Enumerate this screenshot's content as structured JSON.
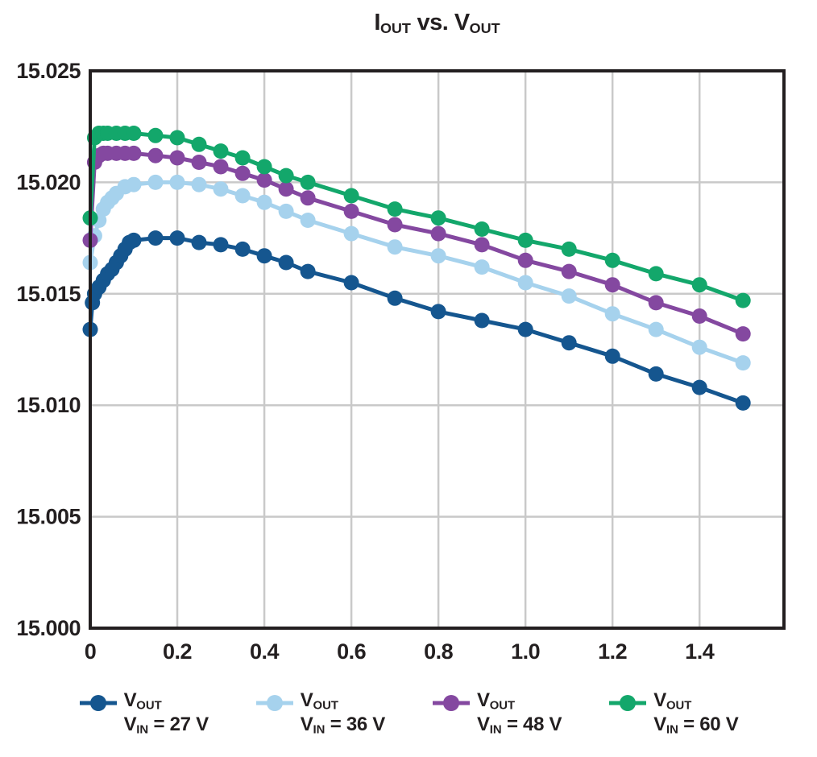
{
  "chart_data": {
    "type": "line",
    "title_segments": [
      {
        "text": "I",
        "sub": false
      },
      {
        "text": "OUT",
        "sub": true
      },
      {
        "text": " vs. V",
        "sub": false
      },
      {
        "text": "OUT",
        "sub": true
      }
    ],
    "xlabel": "",
    "ylabel": "",
    "xlim": [
      0,
      1.594
    ],
    "ylim": [
      15.0,
      15.025
    ],
    "grid": true,
    "legend_position": "bottom",
    "colors": {
      "background": "#ffffff",
      "grid": "#c9c9c9",
      "frame": "#231f20",
      "text": "#231f20"
    },
    "x_ticks": [
      {
        "v": 0.0,
        "label": "0"
      },
      {
        "v": 0.2,
        "label": "0.2"
      },
      {
        "v": 0.4,
        "label": "0.4"
      },
      {
        "v": 0.6,
        "label": "0.6"
      },
      {
        "v": 0.8,
        "label": "0.8"
      },
      {
        "v": 1.0,
        "label": "1.0"
      },
      {
        "v": 1.2,
        "label": "1.2"
      },
      {
        "v": 1.4,
        "label": "1.4"
      }
    ],
    "y_ticks": [
      {
        "v": 15.0,
        "label": "15.000"
      },
      {
        "v": 15.005,
        "label": "15.005"
      },
      {
        "v": 15.01,
        "label": "15.010"
      },
      {
        "v": 15.015,
        "label": "15.015"
      },
      {
        "v": 15.02,
        "label": "15.020"
      },
      {
        "v": 15.025,
        "label": "15.025"
      }
    ],
    "series": [
      {
        "name": "vout-vin-27v",
        "color": "#15568f",
        "legend_line1": [
          {
            "text": "V",
            "sub": false
          },
          {
            "text": "OUT",
            "sub": true
          }
        ],
        "legend_line2": [
          {
            "text": "V",
            "sub": false
          },
          {
            "text": "IN",
            "sub": true
          },
          {
            "text": " = 27 V",
            "sub": false
          }
        ],
        "points": [
          [
            0.0,
            15.0134
          ],
          [
            0.005,
            15.0146
          ],
          [
            0.01,
            15.015
          ],
          [
            0.02,
            15.0153
          ],
          [
            0.03,
            15.0156
          ],
          [
            0.04,
            15.0159
          ],
          [
            0.05,
            15.0161
          ],
          [
            0.06,
            15.0164
          ],
          [
            0.07,
            15.0167
          ],
          [
            0.08,
            15.017
          ],
          [
            0.09,
            15.0173
          ],
          [
            0.1,
            15.0174
          ],
          [
            0.15,
            15.0175
          ],
          [
            0.2,
            15.0175
          ],
          [
            0.25,
            15.0173
          ],
          [
            0.3,
            15.0172
          ],
          [
            0.35,
            15.017
          ],
          [
            0.4,
            15.0167
          ],
          [
            0.45,
            15.0164
          ],
          [
            0.5,
            15.016
          ],
          [
            0.6,
            15.0155
          ],
          [
            0.7,
            15.0148
          ],
          [
            0.8,
            15.0142
          ],
          [
            0.9,
            15.0138
          ],
          [
            1.0,
            15.0134
          ],
          [
            1.1,
            15.0128
          ],
          [
            1.2,
            15.0122
          ],
          [
            1.3,
            15.0114
          ],
          [
            1.4,
            15.0108
          ],
          [
            1.5,
            15.0101
          ]
        ]
      },
      {
        "name": "vout-vin-36v",
        "color": "#a6d2ed",
        "legend_line1": [
          {
            "text": "V",
            "sub": false
          },
          {
            "text": "OUT",
            "sub": true
          }
        ],
        "legend_line2": [
          {
            "text": "V",
            "sub": false
          },
          {
            "text": "IN",
            "sub": true
          },
          {
            "text": " = 36 V",
            "sub": false
          }
        ],
        "points": [
          [
            0.0,
            15.0164
          ],
          [
            0.01,
            15.0176
          ],
          [
            0.02,
            15.0183
          ],
          [
            0.03,
            15.0188
          ],
          [
            0.04,
            15.0191
          ],
          [
            0.05,
            15.0193
          ],
          [
            0.06,
            15.0195
          ],
          [
            0.08,
            15.0198
          ],
          [
            0.1,
            15.0199
          ],
          [
            0.15,
            15.02
          ],
          [
            0.2,
            15.02
          ],
          [
            0.25,
            15.0199
          ],
          [
            0.3,
            15.0197
          ],
          [
            0.35,
            15.0194
          ],
          [
            0.4,
            15.0191
          ],
          [
            0.45,
            15.0187
          ],
          [
            0.5,
            15.0183
          ],
          [
            0.6,
            15.0177
          ],
          [
            0.7,
            15.0171
          ],
          [
            0.8,
            15.0167
          ],
          [
            0.9,
            15.0162
          ],
          [
            1.0,
            15.0155
          ],
          [
            1.1,
            15.0149
          ],
          [
            1.2,
            15.0141
          ],
          [
            1.3,
            15.0134
          ],
          [
            1.4,
            15.0126
          ],
          [
            1.5,
            15.0119
          ]
        ]
      },
      {
        "name": "vout-vin-48v",
        "color": "#8448a0",
        "legend_line1": [
          {
            "text": "V",
            "sub": false
          },
          {
            "text": "OUT",
            "sub": true
          }
        ],
        "legend_line2": [
          {
            "text": "V",
            "sub": false
          },
          {
            "text": "IN",
            "sub": true
          },
          {
            "text": " = 48 V",
            "sub": false
          }
        ],
        "points": [
          [
            0.0,
            15.0174
          ],
          [
            0.01,
            15.0209
          ],
          [
            0.02,
            15.0212
          ],
          [
            0.03,
            15.0213
          ],
          [
            0.04,
            15.0213
          ],
          [
            0.06,
            15.0213
          ],
          [
            0.08,
            15.0213
          ],
          [
            0.1,
            15.0213
          ],
          [
            0.15,
            15.0212
          ],
          [
            0.2,
            15.0211
          ],
          [
            0.25,
            15.0209
          ],
          [
            0.3,
            15.0207
          ],
          [
            0.35,
            15.0204
          ],
          [
            0.4,
            15.0201
          ],
          [
            0.45,
            15.0197
          ],
          [
            0.5,
            15.0193
          ],
          [
            0.6,
            15.0187
          ],
          [
            0.7,
            15.0181
          ],
          [
            0.8,
            15.0177
          ],
          [
            0.9,
            15.0172
          ],
          [
            1.0,
            15.0165
          ],
          [
            1.1,
            15.016
          ],
          [
            1.2,
            15.0154
          ],
          [
            1.3,
            15.0146
          ],
          [
            1.4,
            15.014
          ],
          [
            1.5,
            15.0132
          ]
        ]
      },
      {
        "name": "vout-vin-60v",
        "color": "#13a76b",
        "legend_line1": [
          {
            "text": "V",
            "sub": false
          },
          {
            "text": "OUT",
            "sub": true
          }
        ],
        "legend_line2": [
          {
            "text": "V",
            "sub": false
          },
          {
            "text": "IN",
            "sub": true
          },
          {
            "text": " = 60 V",
            "sub": false
          }
        ],
        "points": [
          [
            0.0,
            15.0184
          ],
          [
            0.01,
            15.022
          ],
          [
            0.02,
            15.0222
          ],
          [
            0.03,
            15.0222
          ],
          [
            0.04,
            15.0222
          ],
          [
            0.06,
            15.0222
          ],
          [
            0.08,
            15.0222
          ],
          [
            0.1,
            15.0222
          ],
          [
            0.15,
            15.0221
          ],
          [
            0.2,
            15.022
          ],
          [
            0.25,
            15.0217
          ],
          [
            0.3,
            15.0214
          ],
          [
            0.35,
            15.0211
          ],
          [
            0.4,
            15.0207
          ],
          [
            0.45,
            15.0203
          ],
          [
            0.5,
            15.02
          ],
          [
            0.6,
            15.0194
          ],
          [
            0.7,
            15.0188
          ],
          [
            0.8,
            15.0184
          ],
          [
            0.9,
            15.0179
          ],
          [
            1.0,
            15.0174
          ],
          [
            1.1,
            15.017
          ],
          [
            1.2,
            15.0165
          ],
          [
            1.3,
            15.0159
          ],
          [
            1.4,
            15.0154
          ],
          [
            1.5,
            15.0147
          ]
        ]
      }
    ]
  }
}
